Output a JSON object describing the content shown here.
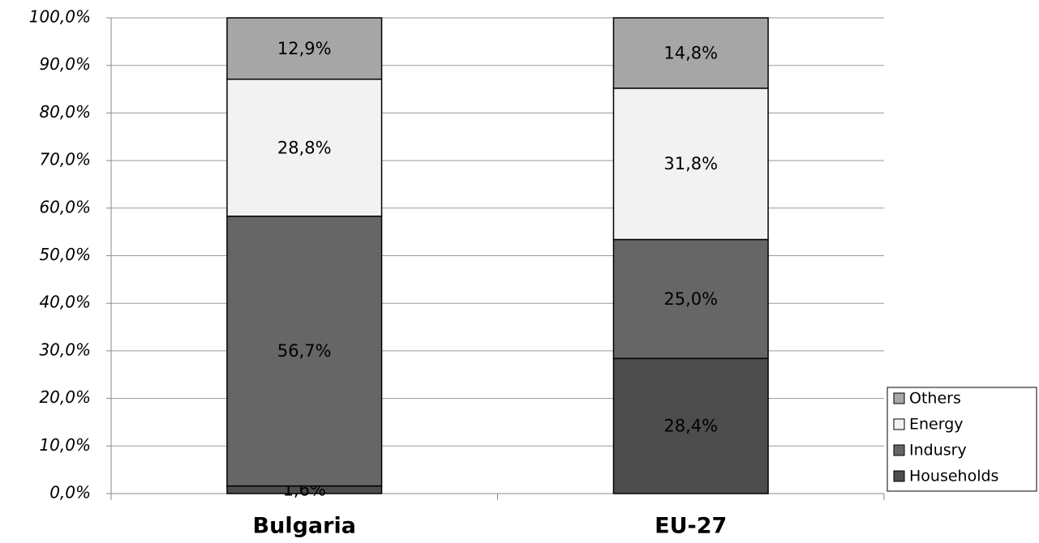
{
  "chart_data": {
    "type": "stacked_bar",
    "categories": [
      "Bulgaria",
      "EU-27"
    ],
    "series": [
      {
        "name": "Households",
        "color": "#4d4d4d",
        "values": [
          1.6,
          28.4
        ],
        "value_labels": [
          "1,6%",
          "28,4%"
        ]
      },
      {
        "name": "Indusry",
        "color": "#666666",
        "values": [
          56.7,
          25.0
        ],
        "value_labels": [
          "56,7%",
          "25,0%"
        ]
      },
      {
        "name": "Energy",
        "color": "#f2f2f2",
        "values": [
          28.8,
          31.8
        ],
        "value_labels": [
          "28,8%",
          "31,8%"
        ]
      },
      {
        "name": "Others",
        "color": "#a6a6a6",
        "values": [
          12.9,
          14.8
        ],
        "value_labels": [
          "12,9%",
          "14,8%"
        ]
      }
    ],
    "ylim": [
      0,
      100
    ],
    "yticks": [
      {
        "value": 0,
        "label": "0,0%"
      },
      {
        "value": 10,
        "label": "10,0%"
      },
      {
        "value": 20,
        "label": "20,0%"
      },
      {
        "value": 30,
        "label": "30,0%"
      },
      {
        "value": 40,
        "label": "40,0%"
      },
      {
        "value": 50,
        "label": "50,0%"
      },
      {
        "value": 60,
        "label": "60,0%"
      },
      {
        "value": 70,
        "label": "70,0%"
      },
      {
        "value": 80,
        "label": "80,0%"
      },
      {
        "value": 90,
        "label": "90,0%"
      },
      {
        "value": 100,
        "label": "100,0%"
      }
    ],
    "grid": true,
    "legend": "lower right"
  }
}
